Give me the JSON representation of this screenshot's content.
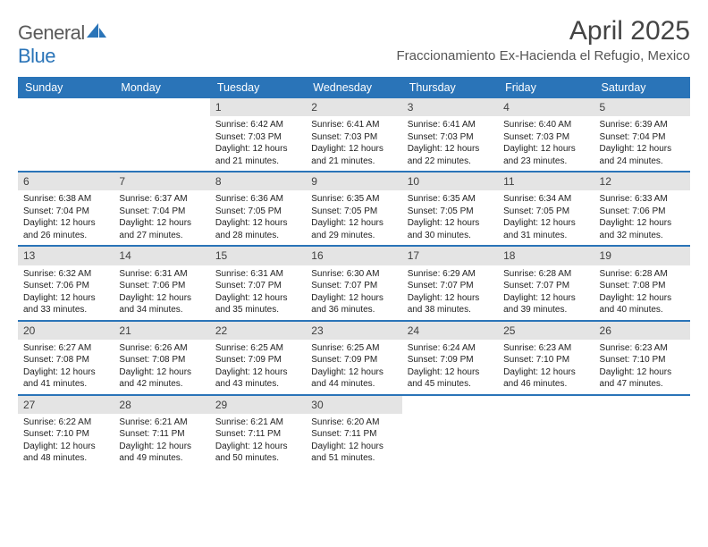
{
  "logo": {
    "text1": "General",
    "text2": "Blue"
  },
  "title": "April 2025",
  "location": "Fraccionamiento Ex-Hacienda el Refugio, Mexico",
  "colors": {
    "header_bg": "#2a74b8",
    "daynum_bg": "#e4e4e4",
    "text": "#222222",
    "muted": "#555555",
    "week_border": "#2a74b8",
    "background": "#ffffff"
  },
  "weekdays": [
    "Sunday",
    "Monday",
    "Tuesday",
    "Wednesday",
    "Thursday",
    "Friday",
    "Saturday"
  ],
  "grid": {
    "first_weekday_index": 2,
    "days_in_month": 30
  },
  "days": {
    "1": {
      "sunrise": "6:42 AM",
      "sunset": "7:03 PM",
      "daylight": "12 hours and 21 minutes."
    },
    "2": {
      "sunrise": "6:41 AM",
      "sunset": "7:03 PM",
      "daylight": "12 hours and 21 minutes."
    },
    "3": {
      "sunrise": "6:41 AM",
      "sunset": "7:03 PM",
      "daylight": "12 hours and 22 minutes."
    },
    "4": {
      "sunrise": "6:40 AM",
      "sunset": "7:03 PM",
      "daylight": "12 hours and 23 minutes."
    },
    "5": {
      "sunrise": "6:39 AM",
      "sunset": "7:04 PM",
      "daylight": "12 hours and 24 minutes."
    },
    "6": {
      "sunrise": "6:38 AM",
      "sunset": "7:04 PM",
      "daylight": "12 hours and 26 minutes."
    },
    "7": {
      "sunrise": "6:37 AM",
      "sunset": "7:04 PM",
      "daylight": "12 hours and 27 minutes."
    },
    "8": {
      "sunrise": "6:36 AM",
      "sunset": "7:05 PM",
      "daylight": "12 hours and 28 minutes."
    },
    "9": {
      "sunrise": "6:35 AM",
      "sunset": "7:05 PM",
      "daylight": "12 hours and 29 minutes."
    },
    "10": {
      "sunrise": "6:35 AM",
      "sunset": "7:05 PM",
      "daylight": "12 hours and 30 minutes."
    },
    "11": {
      "sunrise": "6:34 AM",
      "sunset": "7:05 PM",
      "daylight": "12 hours and 31 minutes."
    },
    "12": {
      "sunrise": "6:33 AM",
      "sunset": "7:06 PM",
      "daylight": "12 hours and 32 minutes."
    },
    "13": {
      "sunrise": "6:32 AM",
      "sunset": "7:06 PM",
      "daylight": "12 hours and 33 minutes."
    },
    "14": {
      "sunrise": "6:31 AM",
      "sunset": "7:06 PM",
      "daylight": "12 hours and 34 minutes."
    },
    "15": {
      "sunrise": "6:31 AM",
      "sunset": "7:07 PM",
      "daylight": "12 hours and 35 minutes."
    },
    "16": {
      "sunrise": "6:30 AM",
      "sunset": "7:07 PM",
      "daylight": "12 hours and 36 minutes."
    },
    "17": {
      "sunrise": "6:29 AM",
      "sunset": "7:07 PM",
      "daylight": "12 hours and 38 minutes."
    },
    "18": {
      "sunrise": "6:28 AM",
      "sunset": "7:07 PM",
      "daylight": "12 hours and 39 minutes."
    },
    "19": {
      "sunrise": "6:28 AM",
      "sunset": "7:08 PM",
      "daylight": "12 hours and 40 minutes."
    },
    "20": {
      "sunrise": "6:27 AM",
      "sunset": "7:08 PM",
      "daylight": "12 hours and 41 minutes."
    },
    "21": {
      "sunrise": "6:26 AM",
      "sunset": "7:08 PM",
      "daylight": "12 hours and 42 minutes."
    },
    "22": {
      "sunrise": "6:25 AM",
      "sunset": "7:09 PM",
      "daylight": "12 hours and 43 minutes."
    },
    "23": {
      "sunrise": "6:25 AM",
      "sunset": "7:09 PM",
      "daylight": "12 hours and 44 minutes."
    },
    "24": {
      "sunrise": "6:24 AM",
      "sunset": "7:09 PM",
      "daylight": "12 hours and 45 minutes."
    },
    "25": {
      "sunrise": "6:23 AM",
      "sunset": "7:10 PM",
      "daylight": "12 hours and 46 minutes."
    },
    "26": {
      "sunrise": "6:23 AM",
      "sunset": "7:10 PM",
      "daylight": "12 hours and 47 minutes."
    },
    "27": {
      "sunrise": "6:22 AM",
      "sunset": "7:10 PM",
      "daylight": "12 hours and 48 minutes."
    },
    "28": {
      "sunrise": "6:21 AM",
      "sunset": "7:11 PM",
      "daylight": "12 hours and 49 minutes."
    },
    "29": {
      "sunrise": "6:21 AM",
      "sunset": "7:11 PM",
      "daylight": "12 hours and 50 minutes."
    },
    "30": {
      "sunrise": "6:20 AM",
      "sunset": "7:11 PM",
      "daylight": "12 hours and 51 minutes."
    }
  },
  "labels": {
    "sunrise": "Sunrise:",
    "sunset": "Sunset:",
    "daylight": "Daylight:"
  }
}
